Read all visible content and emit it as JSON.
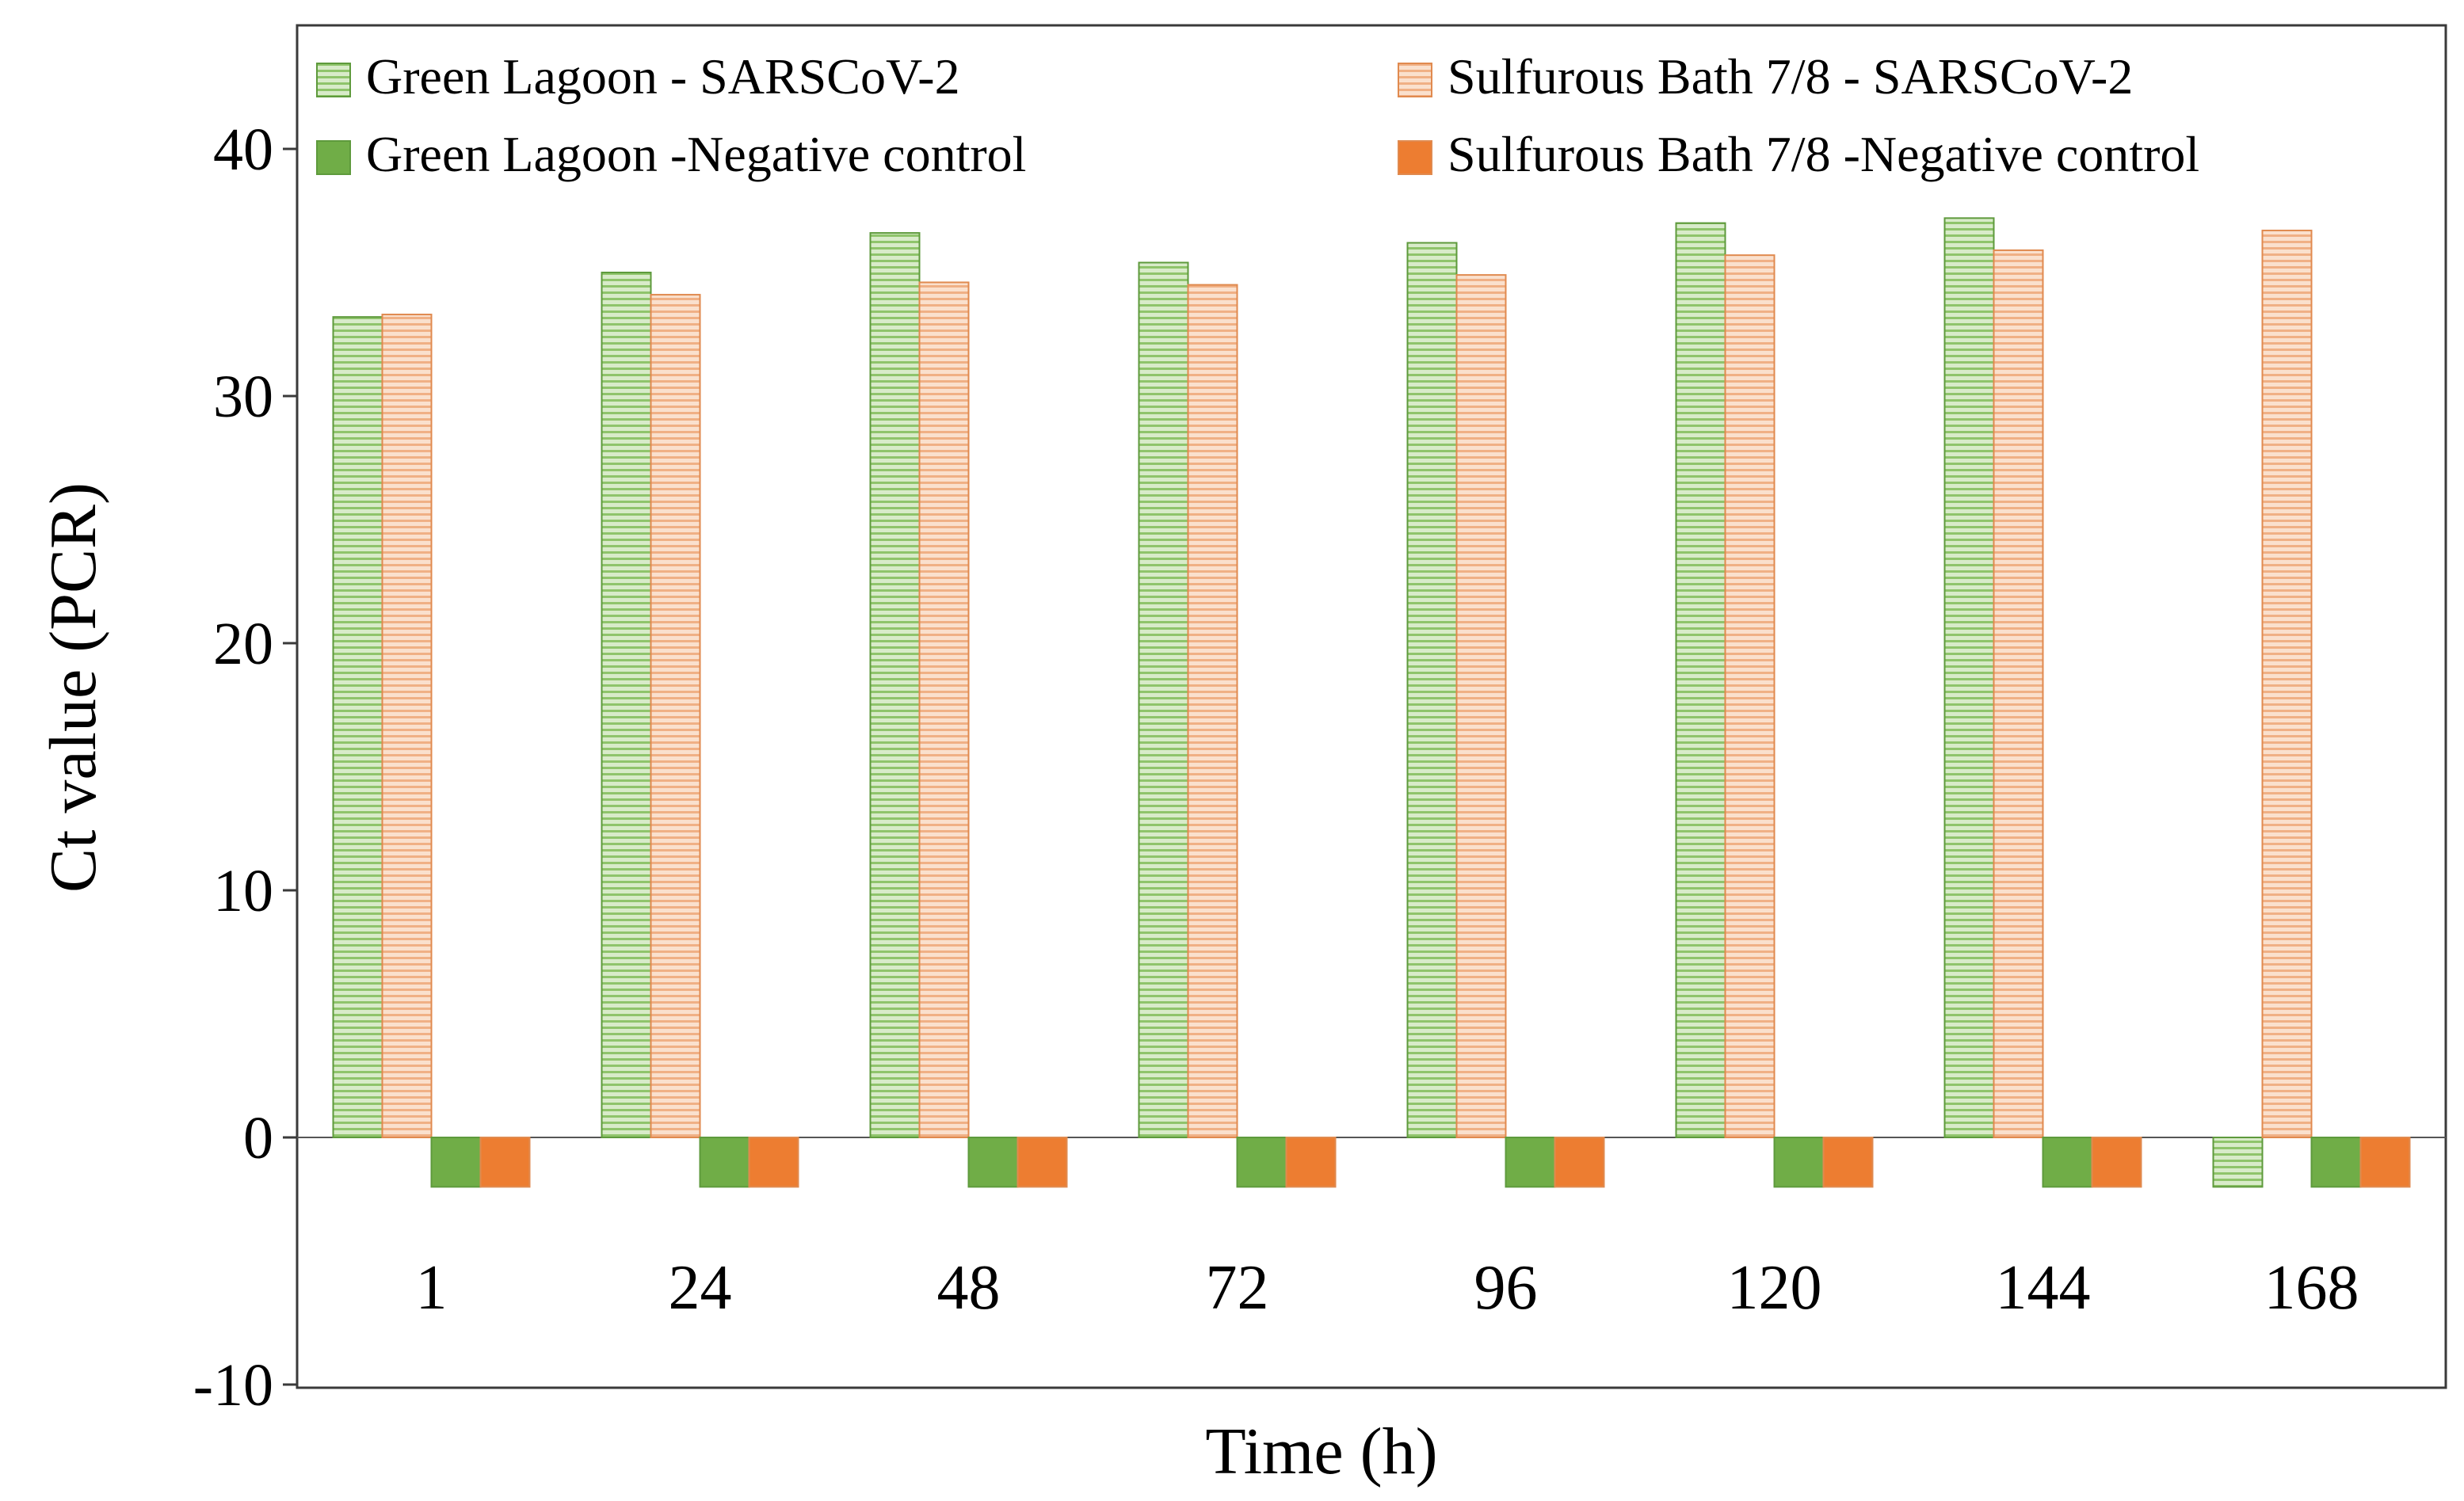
{
  "chart_data": {
    "type": "bar",
    "title": "",
    "xlabel": "Time (h)",
    "ylabel": "Ct value (PCR)",
    "ylim": [
      -10,
      45
    ],
    "yticks": [
      -10,
      0,
      10,
      20,
      30,
      40
    ],
    "ytick_labels": [
      "-10",
      "0",
      "10",
      "20",
      "30",
      "40"
    ],
    "categories": [
      "1",
      "24",
      "48",
      "72",
      "96",
      "120",
      "144",
      "168"
    ],
    "grid": false,
    "legend_position": "top",
    "series": [
      {
        "name": "Green Lagoon - SARSCoV-2",
        "pattern": "hatched",
        "color": "#a9d18e",
        "values": [
          33.2,
          35.0,
          36.6,
          35.4,
          36.2,
          37.0,
          37.2,
          -2
        ]
      },
      {
        "name": "Sulfurous Bath 7/8 - SARSCoV-2",
        "pattern": "hatched",
        "color": "#f4b183",
        "values": [
          33.3,
          34.1,
          34.6,
          34.5,
          34.9,
          35.7,
          35.9,
          36.7
        ]
      },
      {
        "name": "Green Lagoon -Negative control",
        "pattern": "solid",
        "color": "#70ad47",
        "values": [
          -2,
          -2,
          -2,
          -2,
          -2,
          -2,
          -2,
          -2
        ]
      },
      {
        "name": "Sulfurous Bath 7/8 -Negative control",
        "pattern": "solid",
        "color": "#ed7d31",
        "values": [
          -2,
          -2,
          -2,
          -2,
          -2,
          -2,
          -2,
          -2
        ]
      }
    ]
  }
}
